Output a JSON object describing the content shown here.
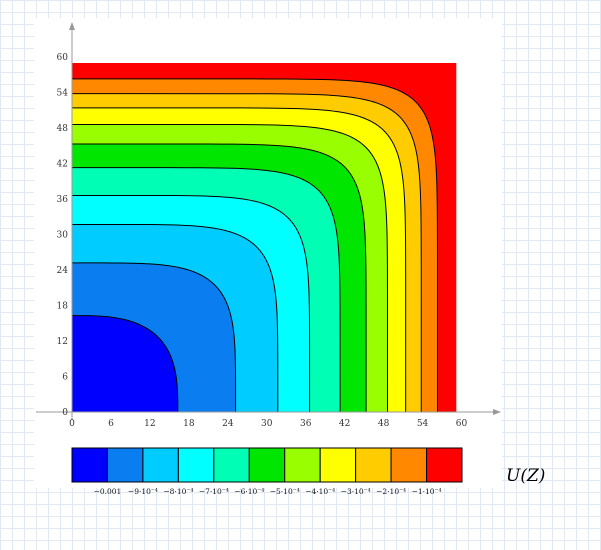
{
  "chart_data": {
    "type": "contour",
    "xlim": [
      0,
      60
    ],
    "ylim": [
      0,
      60
    ],
    "x_ticks": [
      0,
      6,
      12,
      18,
      24,
      30,
      36,
      42,
      48,
      54,
      60
    ],
    "y_ticks": [
      0,
      6,
      12,
      18,
      24,
      30,
      36,
      42,
      48,
      54,
      60
    ],
    "grid": false,
    "levels": [
      -0.001,
      -0.0009,
      -0.0008,
      -0.0007,
      -0.0006,
      -0.0005,
      -0.0004,
      -0.0003,
      -0.0002,
      -0.0001
    ],
    "level_labels": [
      "−0.001",
      "−9·10⁻⁴",
      "−8·10⁻⁴",
      "−7·10⁻⁴",
      "−6·10⁻⁴",
      "−5·10⁻⁴",
      "−4·10⁻⁴",
      "−3·10⁻⁴",
      "−2·10⁻⁴",
      "−1·10⁻⁴"
    ],
    "contour_radii": [
      16.3,
      25.2,
      31.7,
      36.6,
      41.3,
      45.3,
      48.6,
      51.4,
      53.8,
      56.3
    ],
    "colors": [
      "#0000ff",
      "#0a7ef0",
      "#00ccff",
      "#00ffff",
      "#00ffb4",
      "#00e600",
      "#99ff00",
      "#ffff00",
      "#ffcc00",
      "#ff8800",
      "#ff0000"
    ],
    "legend_position": "bottom",
    "function_label": "U(Z)"
  }
}
